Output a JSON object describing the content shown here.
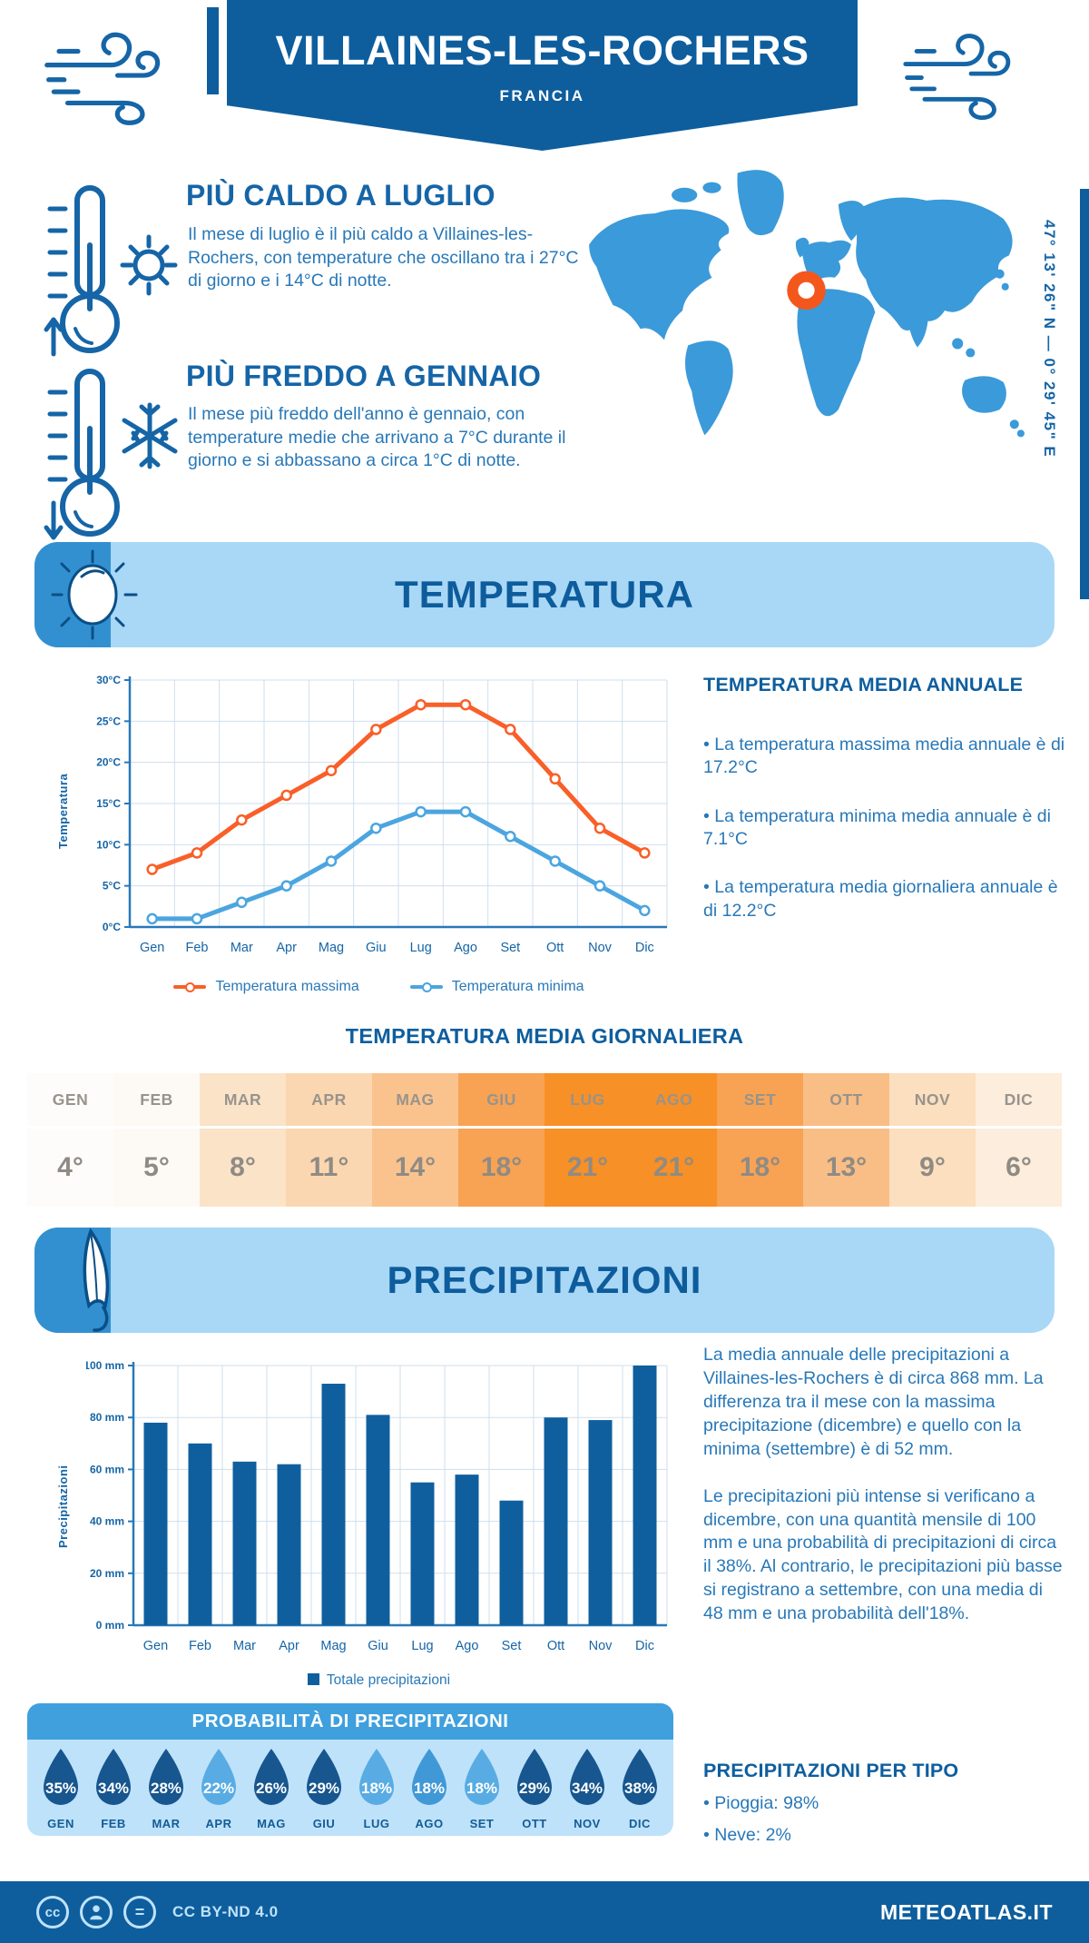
{
  "colors": {
    "dark_blue": "#0e5e9e",
    "heading_blue": "#1565a7",
    "body_blue": "#2878b8",
    "band_blue": "#a9d7f6",
    "band_square_blue": "#3290d0",
    "panel_blue": "#bfe2fb",
    "panel_header_blue": "#3fa0dd",
    "map_blue": "#3b9ad9",
    "marker_orange": "#f4571c",
    "accent_orange": "#f95f28",
    "accent_light_blue": "#4ba5e0",
    "bar_blue": "#0f5f9e",
    "grid_blue": "#cfdfee",
    "axis_blue": "#2878b8",
    "table_text_gray": "#8f8b84"
  },
  "header": {
    "title": "VILLAINES-LES-ROCHERS",
    "subtitle": "FRANCIA",
    "coordinates": "47° 13' 26\" N — 0° 29' 45\" E"
  },
  "highlights": {
    "warm": {
      "title": "PIÙ CALDO A LUGLIO",
      "text": "Il mese di luglio è il più caldo a Villaines-les-Rochers, con temperature che oscillano tra i 27°C di giorno e i 14°C di notte."
    },
    "cold": {
      "title": "PIÙ FREDDO A GENNAIO",
      "text": "Il mese più freddo dell'anno è gennaio, con temperature medie che arrivano a 7°C durante il giorno e si abbassano a circa 1°C di notte."
    }
  },
  "temperature": {
    "section_title": "TEMPERATURA",
    "legend": {
      "max": "Temperatura massima",
      "min": "Temperatura minima"
    },
    "annual": {
      "title": "TEMPERATURA MEDIA ANNUALE",
      "bullets": [
        "• La temperatura massima media annuale è di 17.2°C",
        "• La temperatura minima media annuale è di 7.1°C",
        "• La temperatura media giornaliera annuale è di 12.2°C"
      ]
    },
    "daily": {
      "title": "TEMPERATURA MEDIA GIORNALIERA",
      "cells": [
        {
          "month": "GEN",
          "value": "4°",
          "bg": "#fdfcfa"
        },
        {
          "month": "FEB",
          "value": "5°",
          "bg": "#fdf9f5"
        },
        {
          "month": "MAR",
          "value": "8°",
          "bg": "#fbe3c8"
        },
        {
          "month": "APR",
          "value": "11°",
          "bg": "#fbd7b1"
        },
        {
          "month": "MAG",
          "value": "14°",
          "bg": "#fac38d"
        },
        {
          "month": "GIU",
          "value": "18°",
          "bg": "#f8a254"
        },
        {
          "month": "LUG",
          "value": "21°",
          "bg": "#f79026"
        },
        {
          "month": "AGO",
          "value": "21°",
          "bg": "#f79026"
        },
        {
          "month": "SET",
          "value": "18°",
          "bg": "#f8a254"
        },
        {
          "month": "OTT",
          "value": "13°",
          "bg": "#f9be85"
        },
        {
          "month": "NOV",
          "value": "9°",
          "bg": "#fbdfbf"
        },
        {
          "month": "DIC",
          "value": "6°",
          "bg": "#fceddc"
        }
      ]
    }
  },
  "precipitation": {
    "section_title": "PRECIPITAZIONI",
    "legend": "Totale precipitazioni",
    "paragraphs": [
      "La media annuale delle precipitazioni a Villaines-les-Rochers è di circa 868 mm. La differenza tra il mese con la massima precipitazione (dicembre) e quello con la minima (settembre) è di 52 mm.",
      "Le precipitazioni più intense si verificano a dicembre, con una quantità mensile di 100 mm e una probabilità di precipitazioni di circa il 38%. Al contrario, le precipitazioni più basse si registrano a settembre, con una media di 48 mm e una probabilità dell'18%."
    ],
    "probability": {
      "title": "PROBABILITÀ DI PRECIPITAZIONI",
      "drops": [
        {
          "month": "GEN",
          "value": "35%",
          "color": "#17568e"
        },
        {
          "month": "FEB",
          "value": "34%",
          "color": "#17568e"
        },
        {
          "month": "MAR",
          "value": "28%",
          "color": "#17568e"
        },
        {
          "month": "APR",
          "value": "22%",
          "color": "#58ace3"
        },
        {
          "month": "MAG",
          "value": "26%",
          "color": "#17568e"
        },
        {
          "month": "GIU",
          "value": "29%",
          "color": "#17568e"
        },
        {
          "month": "LUG",
          "value": "18%",
          "color": "#58ace3"
        },
        {
          "month": "AGO",
          "value": "18%",
          "color": "#4198d6"
        },
        {
          "month": "SET",
          "value": "18%",
          "color": "#58ace3"
        },
        {
          "month": "OTT",
          "value": "29%",
          "color": "#17568e"
        },
        {
          "month": "NOV",
          "value": "34%",
          "color": "#17568e"
        },
        {
          "month": "DIC",
          "value": "38%",
          "color": "#17568e"
        }
      ]
    },
    "types": {
      "title": "PRECIPITAZIONI PER TIPO",
      "bullets": [
        "• Pioggia: 98%",
        "• Neve: 2%"
      ]
    }
  },
  "footer": {
    "license": "CC BY-ND 4.0",
    "site": "METEOATLAS.IT",
    "cc_glyph": "cc",
    "nd_glyph": "="
  },
  "chart_data": [
    {
      "type": "line",
      "title": "Temperatura",
      "categories": [
        "Gen",
        "Feb",
        "Mar",
        "Apr",
        "Mag",
        "Giu",
        "Lug",
        "Ago",
        "Set",
        "Ott",
        "Nov",
        "Dic"
      ],
      "series": [
        {
          "name": "Temperatura massima",
          "color": "#f95f28",
          "values": [
            7,
            9,
            13,
            16,
            19,
            24,
            27,
            27,
            24,
            18,
            12,
            9
          ]
        },
        {
          "name": "Temperatura minima",
          "color": "#4ba5e0",
          "values": [
            1,
            1,
            3,
            5,
            8,
            12,
            14,
            14,
            11,
            8,
            5,
            2
          ]
        }
      ],
      "xlabel": "",
      "ylabel": "Temperatura",
      "ylim": [
        0,
        30
      ],
      "ytick_step": 5,
      "yunit": "°C",
      "grid": true,
      "legend_position": "bottom"
    },
    {
      "type": "bar",
      "title": "Precipitazioni",
      "categories": [
        "Gen",
        "Feb",
        "Mar",
        "Apr",
        "Mag",
        "Giu",
        "Lug",
        "Ago",
        "Set",
        "Ott",
        "Nov",
        "Dic"
      ],
      "values": [
        78,
        70,
        63,
        62,
        93,
        81,
        55,
        58,
        48,
        80,
        79,
        100
      ],
      "series_name": "Totale precipitazioni",
      "bar_color": "#0f5f9e",
      "xlabel": "",
      "ylabel": "Precipitazioni",
      "ylim": [
        0,
        100
      ],
      "ytick_step": 20,
      "yunit": " mm",
      "grid": true,
      "legend_position": "bottom"
    }
  ]
}
